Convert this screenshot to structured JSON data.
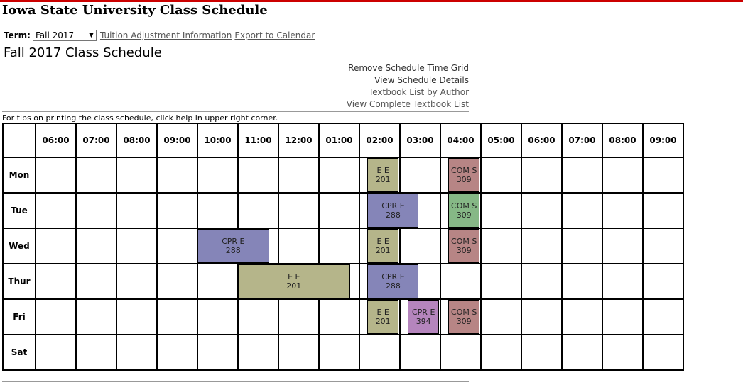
{
  "app_title": "Iowa State University Class Schedule",
  "term": {
    "label": "Term:",
    "selected": "Fall 2017"
  },
  "links": {
    "tuition": "Tuition Adjustment Information",
    "export": "Export to Calendar",
    "remove_grid": "Remove Schedule Time Grid",
    "view_details": "View Schedule Details",
    "textbook_author": "Textbook List by Author",
    "textbook_complete": "View Complete Textbook List"
  },
  "page_title": "Fall 2017 Class Schedule",
  "tips": "For tips on printing the class schedule, click help in upper right corner.",
  "hours": [
    "06:00",
    "07:00",
    "08:00",
    "09:00",
    "10:00",
    "11:00",
    "12:00",
    "01:00",
    "02:00",
    "03:00",
    "04:00",
    "05:00",
    "06:00",
    "07:00",
    "08:00",
    "09:00"
  ],
  "days": [
    "Mon",
    "Tue",
    "Wed",
    "Thur",
    "Fri",
    "Sat"
  ],
  "colors": {
    "ee": "#b5b58a",
    "cpre288": "#8585b8",
    "coms": "#b78585",
    "coms_lab": "#86b886",
    "cpre394": "#b585bd"
  },
  "events": [
    {
      "day": 0,
      "start": 8.2,
      "end": 9.0,
      "course": "E E",
      "number": "201",
      "color": "#b5b58a"
    },
    {
      "day": 0,
      "start": 10.2,
      "end": 11.0,
      "course": "COM S",
      "number": "309",
      "color": "#b78585"
    },
    {
      "day": 1,
      "start": 8.2,
      "end": 9.5,
      "course": "CPR E",
      "number": "288",
      "color": "#8585b8"
    },
    {
      "day": 1,
      "start": 10.2,
      "end": 11.0,
      "course": "COM S",
      "number": "309",
      "color": "#86b886"
    },
    {
      "day": 2,
      "start": 4.0,
      "end": 5.8,
      "course": "CPR E",
      "number": "288",
      "color": "#8585b8"
    },
    {
      "day": 2,
      "start": 8.2,
      "end": 9.0,
      "course": "E E",
      "number": "201",
      "color": "#b5b58a"
    },
    {
      "day": 2,
      "start": 10.2,
      "end": 11.0,
      "course": "COM S",
      "number": "309",
      "color": "#b78585"
    },
    {
      "day": 3,
      "start": 5.0,
      "end": 7.8,
      "course": "E E",
      "number": "201",
      "color": "#b5b58a"
    },
    {
      "day": 3,
      "start": 8.2,
      "end": 9.5,
      "course": "CPR E",
      "number": "288",
      "color": "#8585b8"
    },
    {
      "day": 4,
      "start": 8.2,
      "end": 9.0,
      "course": "E E",
      "number": "201",
      "color": "#b5b58a"
    },
    {
      "day": 4,
      "start": 9.2,
      "end": 10.0,
      "course": "CPR E",
      "number": "394",
      "color": "#b585bd"
    },
    {
      "day": 4,
      "start": 10.2,
      "end": 11.0,
      "course": "COM S",
      "number": "309",
      "color": "#b78585"
    }
  ]
}
